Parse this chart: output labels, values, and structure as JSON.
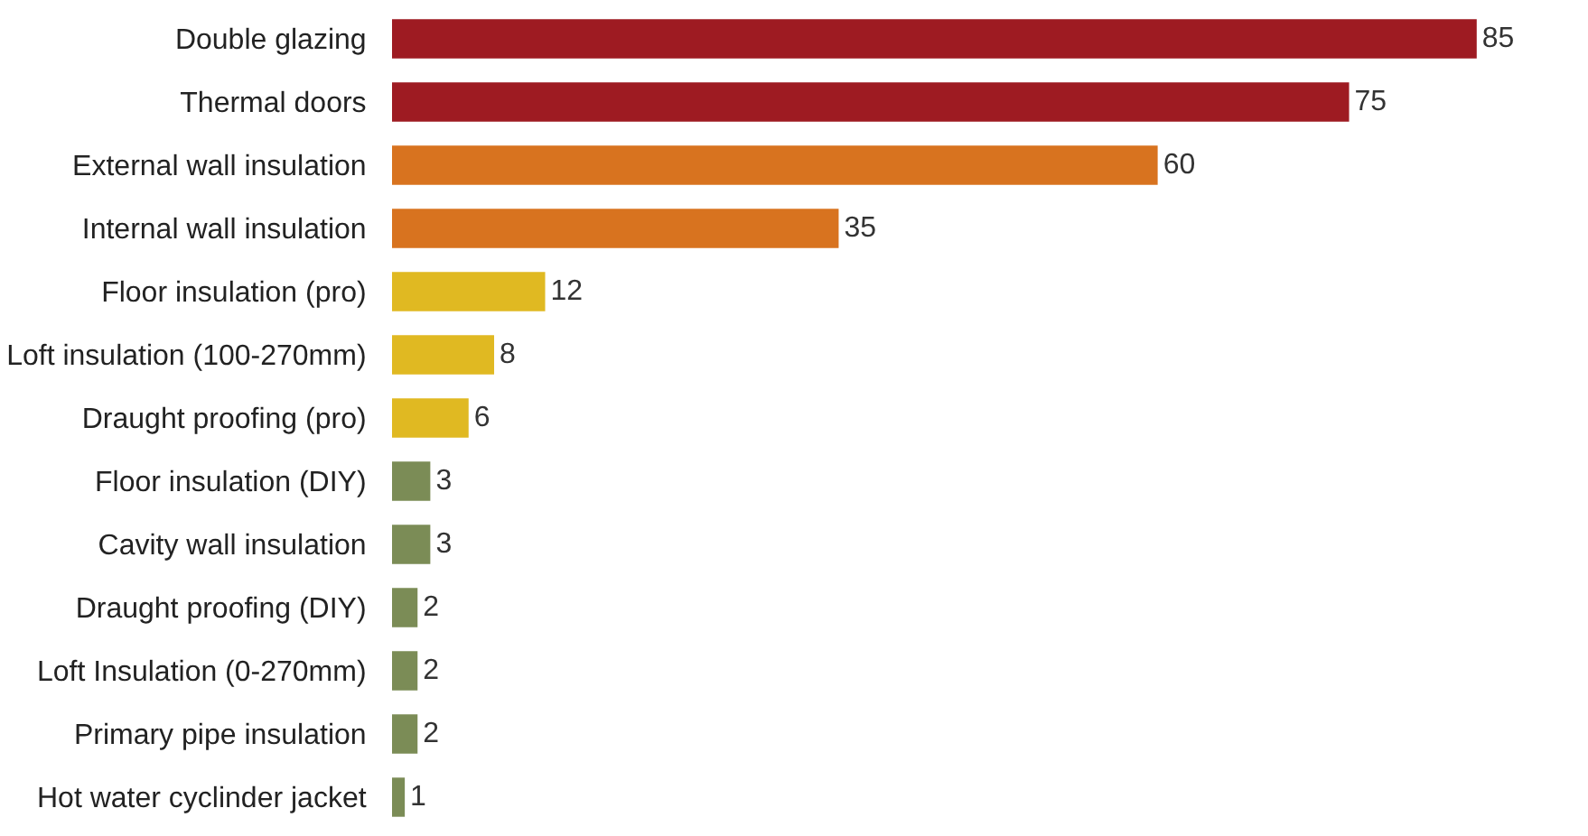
{
  "chart_data": {
    "type": "bar",
    "orientation": "horizontal",
    "categories": [
      "Double glazing",
      "Thermal doors",
      "External wall insulation",
      "Internal wall insulation",
      "Floor insulation (pro)",
      "Loft insulation (100-270mm)",
      "Draught proofing (pro)",
      "Floor insulation (DIY)",
      "Cavity wall insulation",
      "Draught proofing (DIY)",
      "Loft Insulation (0-270mm)",
      "Primary pipe insulation",
      "Hot water cyclinder jacket"
    ],
    "values": [
      85,
      75,
      60,
      35,
      12,
      8,
      6,
      3,
      3,
      2,
      2,
      2,
      1
    ],
    "colors": [
      "#9e1b22",
      "#9e1b22",
      "#d8731f",
      "#d8731f",
      "#e0b922",
      "#e0b922",
      "#e0b922",
      "#7b8c56",
      "#7b8c56",
      "#7b8c56",
      "#7b8c56",
      "#7b8c56",
      "#7b8c56"
    ],
    "data_labels": true
  }
}
